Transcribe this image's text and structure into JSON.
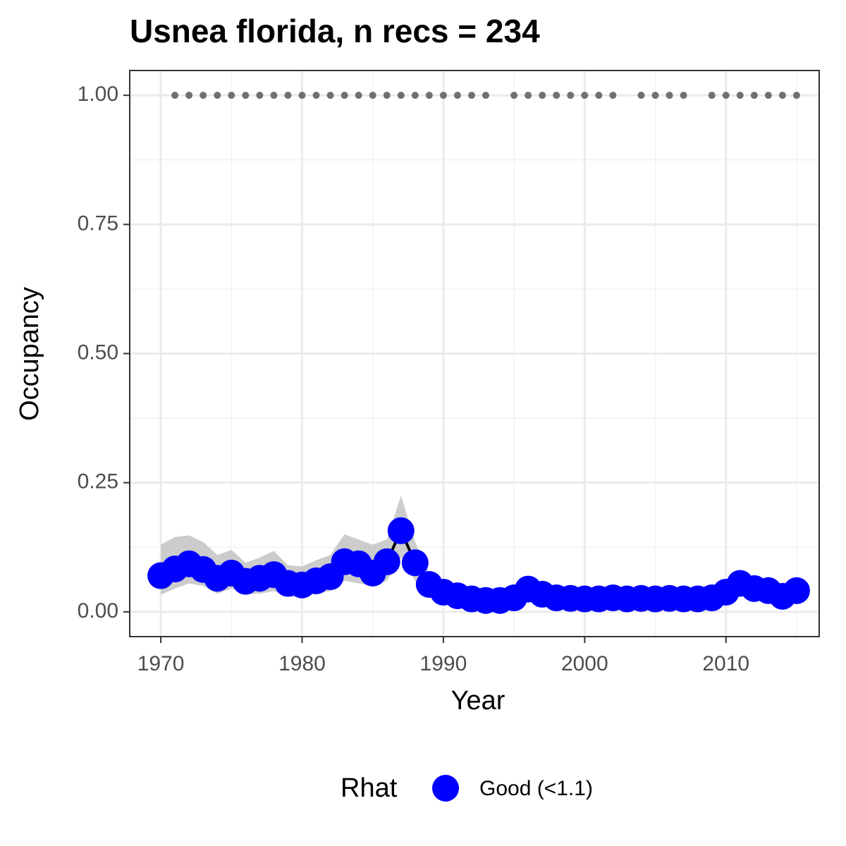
{
  "chart_data": {
    "type": "line",
    "title": "Usnea florida, n recs = 234",
    "x_label": "Year",
    "y_label": "Occupancy",
    "legend_title": "Rhat",
    "x": [
      1970,
      1971,
      1972,
      1973,
      1974,
      1975,
      1976,
      1977,
      1978,
      1979,
      1980,
      1981,
      1982,
      1983,
      1984,
      1985,
      1986,
      1987,
      1988,
      1989,
      1990,
      1991,
      1992,
      1993,
      1994,
      1995,
      1996,
      1997,
      1998,
      1999,
      2000,
      2001,
      2002,
      2003,
      2004,
      2005,
      2006,
      2007,
      2008,
      2009,
      2010,
      2011,
      2012,
      2013,
      2014,
      2015
    ],
    "series": [
      {
        "name": "Good (<1.1)",
        "color": "#0000ff",
        "line_color": "#000000",
        "values": [
          0.07,
          0.083,
          0.093,
          0.082,
          0.065,
          0.075,
          0.059,
          0.065,
          0.072,
          0.055,
          0.052,
          0.06,
          0.068,
          0.097,
          0.093,
          0.075,
          0.097,
          0.157,
          0.095,
          0.053,
          0.038,
          0.031,
          0.025,
          0.022,
          0.022,
          0.027,
          0.044,
          0.034,
          0.027,
          0.026,
          0.025,
          0.025,
          0.027,
          0.025,
          0.026,
          0.025,
          0.026,
          0.025,
          0.025,
          0.027,
          0.038,
          0.055,
          0.045,
          0.041,
          0.03,
          0.041
        ],
        "lower": [
          0.033,
          0.045,
          0.055,
          0.05,
          0.035,
          0.045,
          0.035,
          0.035,
          0.04,
          0.03,
          0.028,
          0.035,
          0.04,
          0.06,
          0.055,
          0.05,
          0.06,
          0.105,
          0.06,
          0.035,
          0.026,
          0.019,
          0.013,
          0.01,
          0.01,
          0.015,
          0.032,
          0.022,
          0.015,
          0.014,
          0.013,
          0.013,
          0.015,
          0.013,
          0.014,
          0.013,
          0.014,
          0.013,
          0.013,
          0.015,
          0.026,
          0.043,
          0.033,
          0.029,
          0.018,
          0.029
        ],
        "upper": [
          0.13,
          0.145,
          0.148,
          0.135,
          0.11,
          0.12,
          0.095,
          0.105,
          0.118,
          0.09,
          0.088,
          0.1,
          0.11,
          0.15,
          0.14,
          0.13,
          0.14,
          0.225,
          0.135,
          0.075,
          0.05,
          0.043,
          0.037,
          0.034,
          0.034,
          0.039,
          0.056,
          0.046,
          0.039,
          0.038,
          0.037,
          0.037,
          0.039,
          0.037,
          0.038,
          0.037,
          0.038,
          0.037,
          0.037,
          0.039,
          0.05,
          0.067,
          0.057,
          0.053,
          0.042,
          0.053
        ],
        "band_color": "#cccccc"
      }
    ],
    "records": {
      "color": "#707070",
      "x": [
        1971,
        1972,
        1973,
        1974,
        1975,
        1976,
        1977,
        1978,
        1979,
        1980,
        1981,
        1982,
        1983,
        1984,
        1985,
        1986,
        1987,
        1988,
        1989,
        1990,
        1991,
        1992,
        1993,
        1995,
        1996,
        1997,
        1998,
        1999,
        2000,
        2001,
        2002,
        2004,
        2005,
        2006,
        2007,
        2009,
        2010,
        2011,
        2012,
        2013,
        2014,
        2015
      ],
      "values": [
        1,
        1,
        1,
        1,
        1,
        1,
        1,
        1,
        1,
        1,
        1,
        1,
        1,
        1,
        1,
        1,
        1,
        1,
        1,
        1,
        1,
        1,
        1,
        1,
        1,
        1,
        1,
        1,
        1,
        1,
        1,
        1,
        1,
        1,
        1,
        1,
        1,
        1,
        1,
        1,
        1,
        1
      ]
    },
    "xlim": [
      1967.8,
      2016.6
    ],
    "ylim": [
      -0.048,
      1.048
    ],
    "xticks": [
      1970,
      1980,
      1990,
      2000,
      2010
    ],
    "yticks": [
      {
        "value": 0,
        "label": "0.00"
      },
      {
        "value": 0.25,
        "label": "0.25"
      },
      {
        "value": 0.5,
        "label": "0.50"
      },
      {
        "value": 0.75,
        "label": "0.75"
      },
      {
        "value": 1,
        "label": "1.00"
      }
    ],
    "xminor": [
      1975,
      1985,
      1995,
      2005,
      2015
    ],
    "yminor": [
      0.125,
      0.375,
      0.625,
      0.875
    ],
    "grid": true,
    "legend_position": "bottom"
  }
}
